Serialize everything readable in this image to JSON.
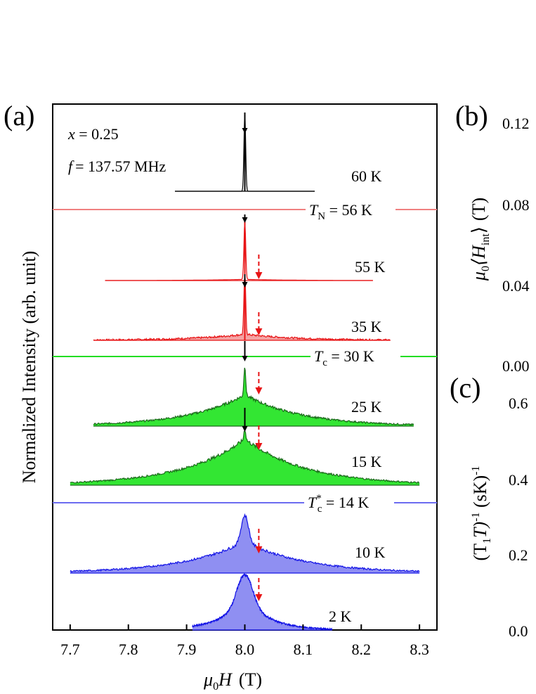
{
  "figure": {
    "panel_a_label": "(a)",
    "panel_b_label": "(b)",
    "panel_c_label": "(c)",
    "annot_x_sym": "x",
    "annot_x_val": " = 0.25",
    "annot_f_sym": "f",
    "annot_f_val": "= 137.57 MHz"
  },
  "chart_data": [
    {
      "panel": "a",
      "type": "line",
      "xlabel_sym": "μ",
      "xlabel_sub": "0",
      "xlabel_var": "H",
      "xlabel_unit": "(T)",
      "ylabel": "Normalized Intensity (arb. unit)",
      "xlim": [
        7.67,
        8.33
      ],
      "xticks": [
        "7.7",
        "7.8",
        "7.9",
        "8.0",
        "8.1",
        "8.2",
        "8.3"
      ],
      "xtick_values": [
        7.7,
        7.8,
        7.9,
        8.0,
        8.1,
        8.2,
        8.3
      ],
      "grid": false,
      "spectra": [
        {
          "label": "60 K",
          "color": "#000000",
          "fill": "none",
          "x_range": [
            7.88,
            8.12
          ],
          "peak": 8.0,
          "width": 0.0015,
          "bump": 0,
          "shift_arrow": false
        },
        {
          "label": "55 K",
          "color": "#e81416",
          "fill": "none",
          "x_range": [
            7.76,
            8.22
          ],
          "peak": 8.0,
          "width": 0.0015,
          "bump": 0.02,
          "shift_arrow": true
        },
        {
          "label": "35 K",
          "color": "#e81416",
          "fill": "#f4a3a3",
          "x_range": [
            7.74,
            8.25
          ],
          "peak": 8.0,
          "width": 0.0015,
          "bump": 0.09,
          "shift_arrow": true
        },
        {
          "label": "25 K",
          "color": "#1a6b1a",
          "fill": "#33e633",
          "x_range": [
            7.74,
            8.29
          ],
          "peak": 8.0,
          "width": 0.0015,
          "bump": 0.52,
          "shift_arrow": true
        },
        {
          "label": "15 K",
          "color": "#1a6b1a",
          "fill": "#33e633",
          "x_range": [
            7.7,
            8.3
          ],
          "peak": 8.0,
          "width": 0.0015,
          "bump": 0.82,
          "shift_arrow": true
        },
        {
          "label": "10 K",
          "color": "#1414e6",
          "fill": "#8f8ff2",
          "x_range": [
            7.7,
            8.3
          ],
          "peak": 8.0,
          "width": 0.006,
          "bump": 0.55,
          "shift_arrow": true
        },
        {
          "label": "2 K",
          "color": "#1414e6",
          "fill": "#8f8ff2",
          "x_range": [
            7.91,
            8.15
          ],
          "peak": 8.0,
          "width": 0.012,
          "bump": 0.6,
          "shift_arrow": true
        }
      ],
      "transitions": [
        {
          "sym": "T",
          "sub": "N",
          "sup": "",
          "value": " = 56 K",
          "color": "#f08080"
        },
        {
          "sym": "T",
          "sub": "c",
          "sup": "",
          "value": " = 30 K",
          "color": "#22dd22"
        },
        {
          "sym": "T",
          "sub": "c",
          "sup": "*",
          "value": " = 14 K",
          "color": "#6b6bf0"
        }
      ]
    },
    {
      "panel": "b",
      "type": "scatter",
      "ylabel_sym": "μ",
      "ylabel_sub": "0",
      "ylabel_var": "⟨H",
      "ylabel_varsub": "int",
      "ylabel_close": "⟩",
      "ylabel_unit": "(T)",
      "yticks": [
        "0.12",
        "0.08",
        "0.04",
        "0.00"
      ],
      "ylim": [
        0.0,
        0.12
      ]
    },
    {
      "panel": "c",
      "type": "scatter",
      "ylabel_text": "(T",
      "ylabel_sub": "1",
      "ylabel_text2": "T)",
      "ylabel_sup": "-1",
      "ylabel_text3": " (sK)",
      "ylabel_sup2": "-1",
      "yticks": [
        "0.6",
        "0.4",
        "0.2",
        "0.0"
      ],
      "ylim": [
        0.0,
        0.6
      ]
    }
  ]
}
